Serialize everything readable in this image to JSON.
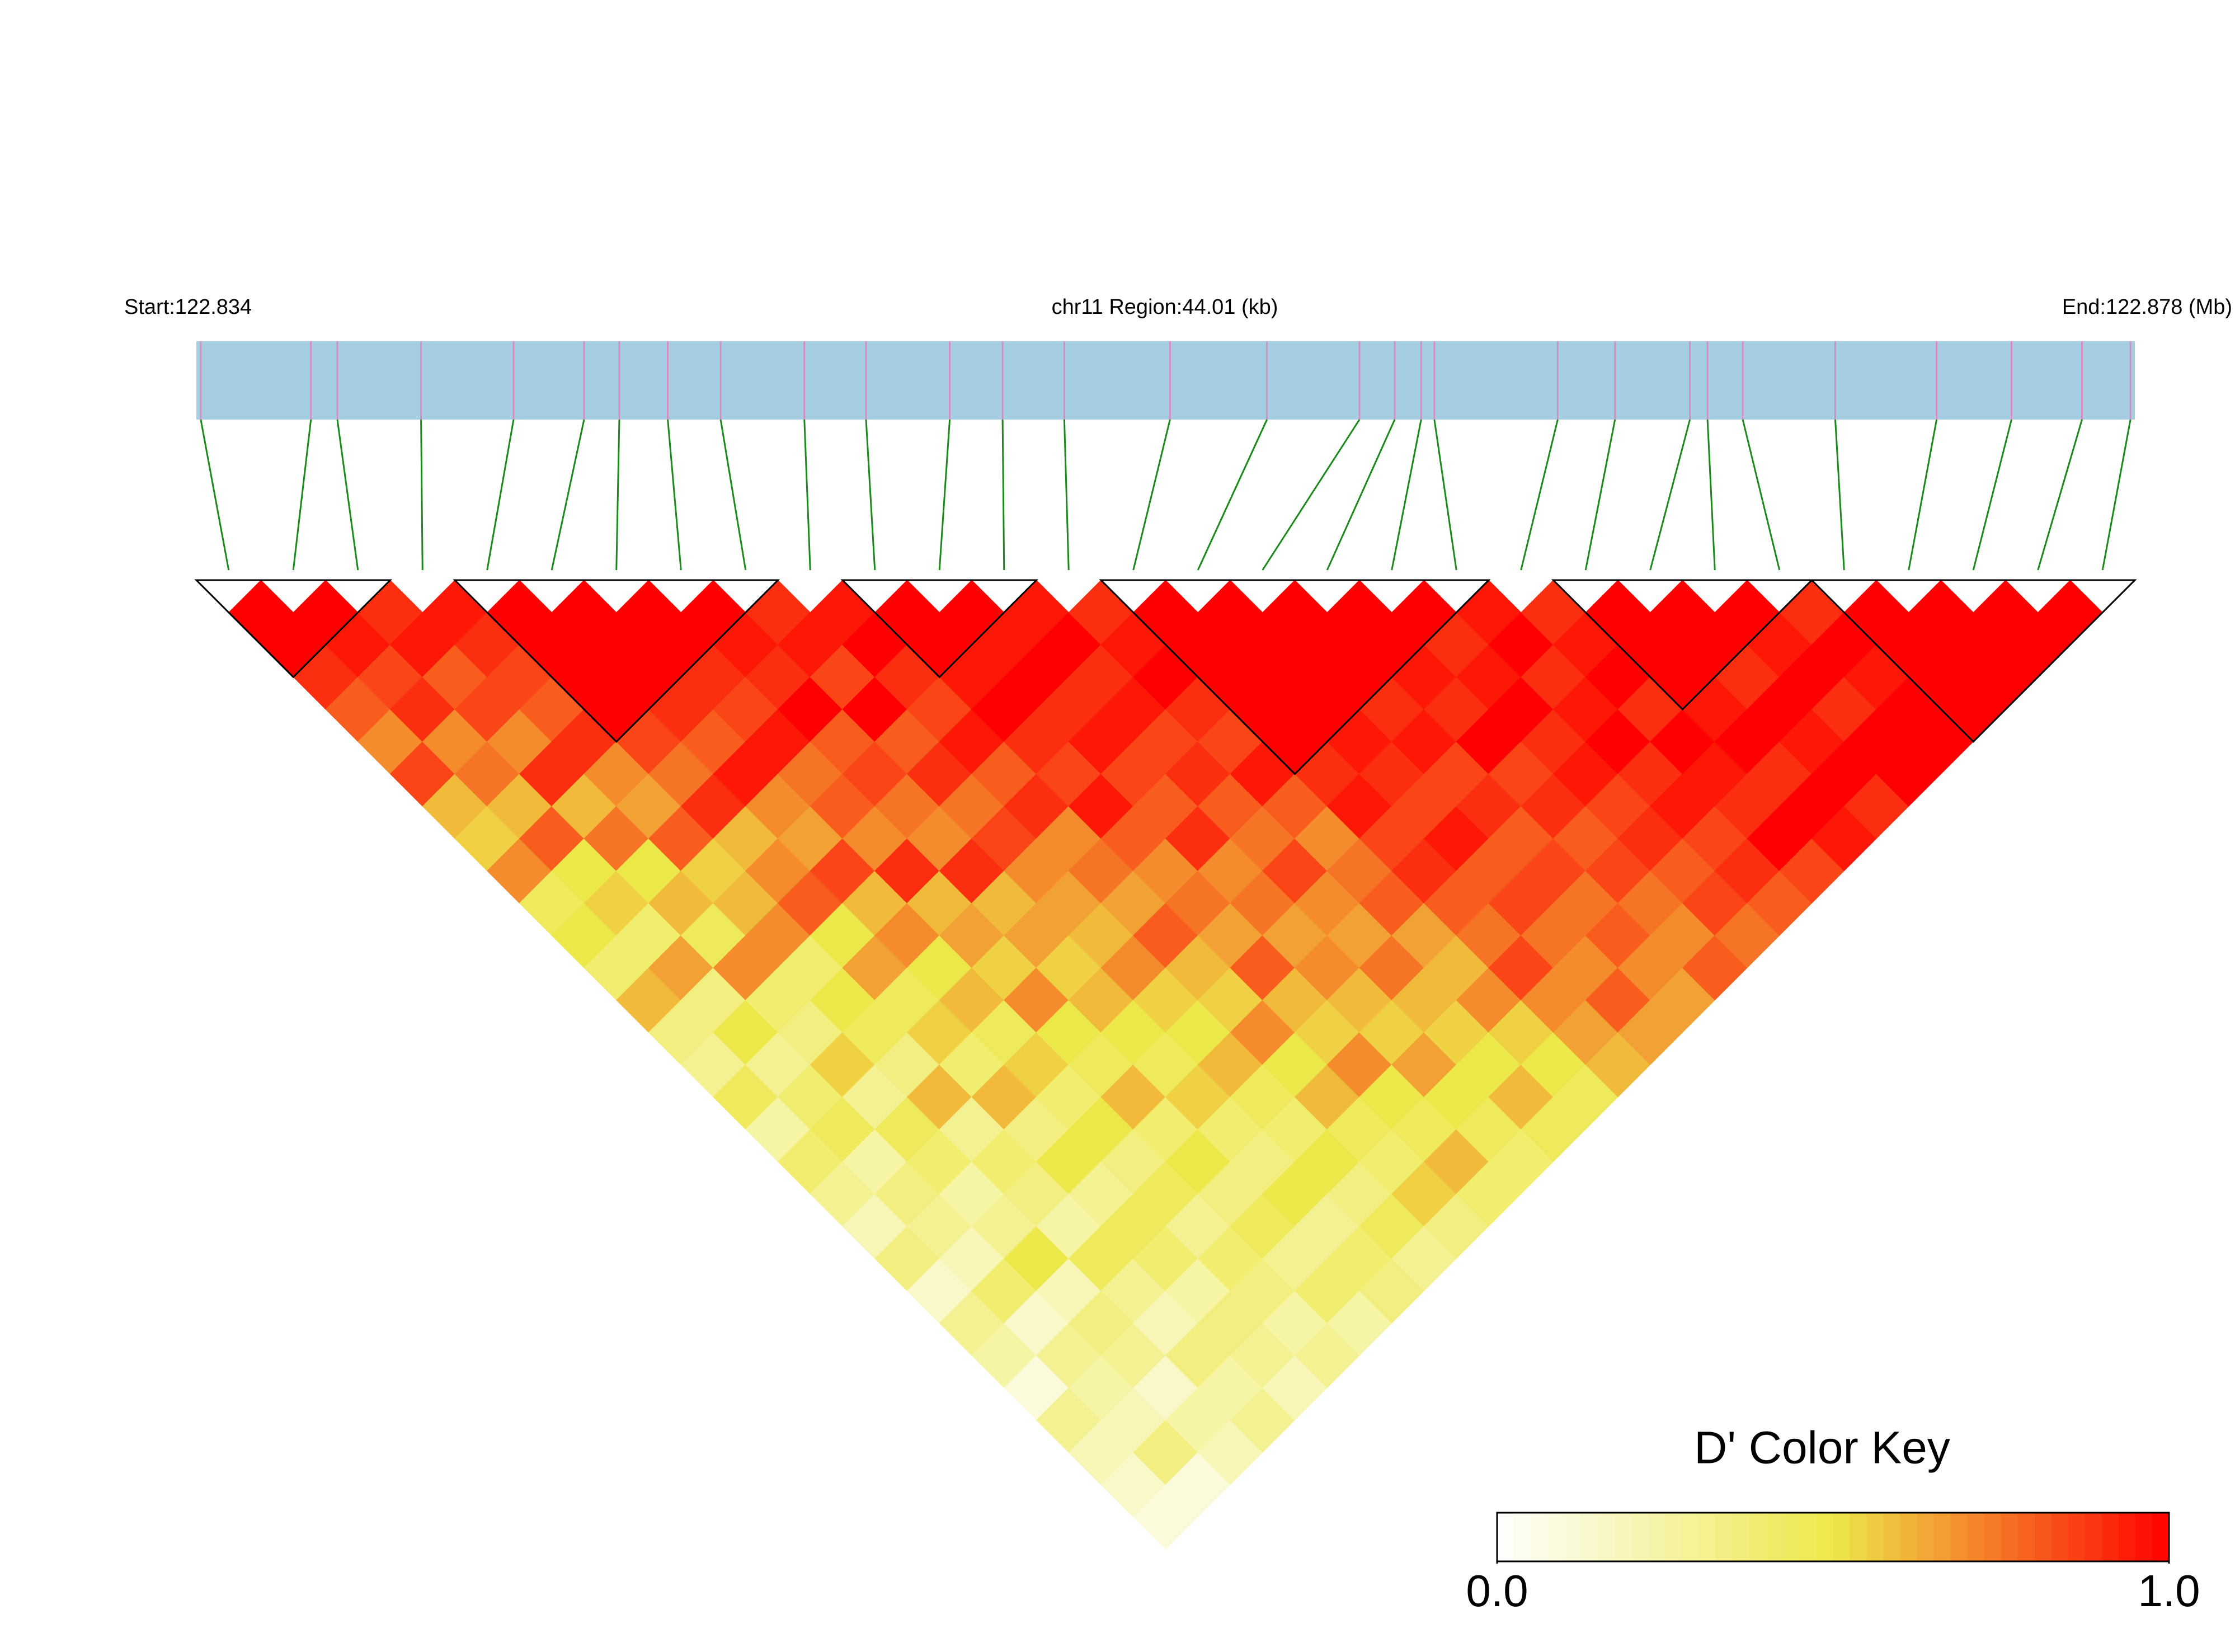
{
  "chart_data": {
    "type": "ld_heatmap",
    "start_label": "Start:122.834",
    "region_label": "chr11 Region:44.01 (kb)",
    "end_label": "End:122.878 (Mb)",
    "xlim": [
      122.834,
      122.878
    ],
    "positions": [
      122.8341,
      122.8366,
      122.8372,
      122.8391,
      122.8412,
      122.8428,
      122.8436,
      122.8447,
      122.8459,
      122.8478,
      122.8492,
      122.8511,
      122.8523,
      122.8537,
      122.8561,
      122.8583,
      122.8604,
      122.8612,
      122.8618,
      122.8621,
      122.8649,
      122.8662,
      122.8679,
      122.8683,
      122.8691,
      122.8712,
      122.8735,
      122.8752,
      122.8768,
      122.8779
    ],
    "bar_color": "#a6cee3",
    "snp_tick_color": "#d98cc0",
    "link_color": "#1a8a1a",
    "dprime": [
      [
        1,
        1,
        0.9,
        0.8,
        0.7,
        0.85,
        0.6,
        0.55,
        0.7,
        0.45,
        0.5,
        0.4,
        0.6,
        0.35,
        0.3,
        0.45,
        0.25,
        0.4,
        0.3,
        0.2,
        0.35,
        0.15,
        0.3,
        0.25,
        0.1,
        0.3,
        0.2,
        0.15,
        0.1
      ],
      [
        1,
        0.95,
        0.85,
        0.9,
        0.7,
        0.75,
        0.6,
        0.8,
        0.5,
        0.55,
        0.4,
        0.65,
        0.35,
        0.5,
        0.3,
        0.4,
        0.45,
        0.25,
        0.35,
        0.3,
        0.2,
        0.4,
        0.15,
        0.3,
        0.25,
        0.2,
        0.35,
        0.1
      ],
      [
        0.9,
        0.95,
        0.8,
        0.85,
        0.7,
        0.9,
        0.6,
        0.75,
        0.5,
        0.6,
        0.45,
        0.7,
        0.4,
        0.35,
        0.55,
        0.3,
        0.45,
        0.4,
        0.25,
        0.3,
        0.5,
        0.2,
        0.35,
        0.3,
        0.15,
        0.25,
        0.2
      ],
      [
        0.95,
        0.9,
        0.85,
        0.8,
        0.9,
        0.7,
        0.65,
        0.8,
        0.55,
        0.6,
        0.7,
        0.4,
        0.5,
        0.45,
        0.35,
        0.6,
        0.3,
        0.4,
        0.35,
        0.25,
        0.45,
        0.3,
        0.2,
        0.35,
        0.25,
        0.3
      ],
      [
        1,
        1,
        1,
        1,
        0.85,
        0.75,
        0.9,
        0.6,
        0.7,
        0.8,
        0.5,
        0.65,
        0.45,
        0.55,
        0.4,
        0.6,
        0.35,
        0.5,
        0.3,
        0.45,
        0.4,
        0.25,
        0.35,
        0.3,
        0.2
      ],
      [
        1,
        1,
        1,
        0.9,
        0.8,
        0.95,
        0.7,
        0.65,
        0.85,
        0.6,
        0.7,
        0.5,
        0.6,
        0.45,
        0.55,
        0.4,
        0.5,
        0.35,
        0.45,
        0.3,
        0.4,
        0.35,
        0.25,
        0.3
      ],
      [
        1,
        1,
        0.9,
        0.85,
        0.95,
        0.75,
        0.8,
        0.7,
        0.9,
        0.6,
        0.65,
        0.55,
        0.7,
        0.5,
        0.45,
        0.6,
        0.4,
        0.5,
        0.35,
        0.45,
        0.3,
        0.4,
        0.25
      ],
      [
        1,
        0.95,
        0.9,
        1,
        0.8,
        0.85,
        0.75,
        0.7,
        0.9,
        0.6,
        0.65,
        0.55,
        0.6,
        0.5,
        0.45,
        0.55,
        0.4,
        0.35,
        0.5,
        0.3,
        0.4,
        0.35
      ],
      [
        0.9,
        0.95,
        0.85,
        1,
        0.8,
        0.9,
        0.75,
        0.85,
        0.7,
        0.65,
        0.6,
        0.7,
        0.55,
        0.5,
        0.6,
        0.45,
        0.4,
        0.5,
        0.35,
        0.45,
        0.3
      ],
      [
        0.95,
        1,
        0.9,
        0.85,
        0.95,
        0.8,
        0.9,
        0.7,
        0.75,
        0.65,
        0.8,
        0.6,
        0.55,
        0.7,
        0.5,
        0.6,
        0.45,
        0.4,
        0.55,
        0.35
      ],
      [
        1,
        1,
        0.95,
        1,
        0.9,
        0.85,
        0.95,
        0.8,
        0.7,
        0.75,
        0.65,
        0.8,
        0.6,
        0.55,
        0.7,
        0.5,
        0.45,
        0.6,
        0.4
      ],
      [
        1,
        0.95,
        1,
        0.9,
        0.95,
        0.85,
        0.8,
        0.9,
        0.7,
        0.75,
        0.65,
        0.7,
        0.6,
        0.55,
        0.65,
        0.5,
        0.45,
        0.4
      ],
      [
        0.95,
        1,
        0.9,
        0.95,
        0.85,
        0.9,
        0.8,
        0.75,
        0.85,
        0.7,
        0.65,
        0.75,
        0.6,
        0.55,
        0.5,
        0.6,
        0.45
      ],
      [
        0.9,
        0.95,
        1,
        0.9,
        0.85,
        0.95,
        0.8,
        0.7,
        0.75,
        0.8,
        0.65,
        0.6,
        0.7,
        0.55,
        0.5,
        0.45
      ],
      [
        1,
        1,
        1,
        1,
        1,
        0.9,
        0.95,
        0.85,
        0.9,
        0.8,
        0.75,
        0.85,
        0.7,
        0.65,
        0.6
      ],
      [
        1,
        1,
        1,
        1,
        0.95,
        0.9,
        0.85,
        0.95,
        0.8,
        0.85,
        0.75,
        0.7,
        0.8,
        0.65
      ],
      [
        1,
        1,
        1,
        0.9,
        0.95,
        0.85,
        0.9,
        0.8,
        0.85,
        0.75,
        0.8,
        0.7,
        0.65
      ],
      [
        1,
        1,
        0.95,
        0.9,
        1,
        0.85,
        0.9,
        0.8,
        0.85,
        0.75,
        0.7,
        0.8
      ],
      [
        1,
        0.9,
        0.95,
        1,
        0.9,
        0.95,
        0.85,
        0.9,
        0.8,
        0.85,
        0.75
      ],
      [
        0.95,
        1,
        0.9,
        0.95,
        1,
        0.9,
        0.95,
        0.85,
        0.9,
        0.8
      ],
      [
        0.9,
        0.95,
        1,
        0.9,
        1,
        0.95,
        0.9,
        1,
        0.85
      ],
      [
        1,
        1,
        1,
        0.95,
        1,
        0.9,
        1,
        0.95
      ],
      [
        1,
        1,
        0.9,
        1,
        0.95,
        1,
        0.9
      ],
      [
        1,
        0.95,
        1,
        0.9,
        1,
        1
      ],
      [
        0.9,
        1,
        0.95,
        1,
        1
      ],
      [
        1,
        1,
        1,
        1
      ],
      [
        1,
        1,
        1
      ],
      [
        1,
        1
      ],
      [
        1
      ]
    ],
    "blocks": [
      [
        0,
        2
      ],
      [
        4,
        8
      ],
      [
        10,
        12
      ],
      [
        14,
        19
      ],
      [
        21,
        24
      ],
      [
        25,
        29
      ]
    ],
    "key_title": "D' Color Key",
    "key_ticks": [
      {
        "value": 0,
        "label": "0.0"
      },
      {
        "value": 1,
        "label": "1.0"
      }
    ],
    "colors": [
      "#ffffff",
      "#ede84a",
      "#ff0000"
    ]
  }
}
